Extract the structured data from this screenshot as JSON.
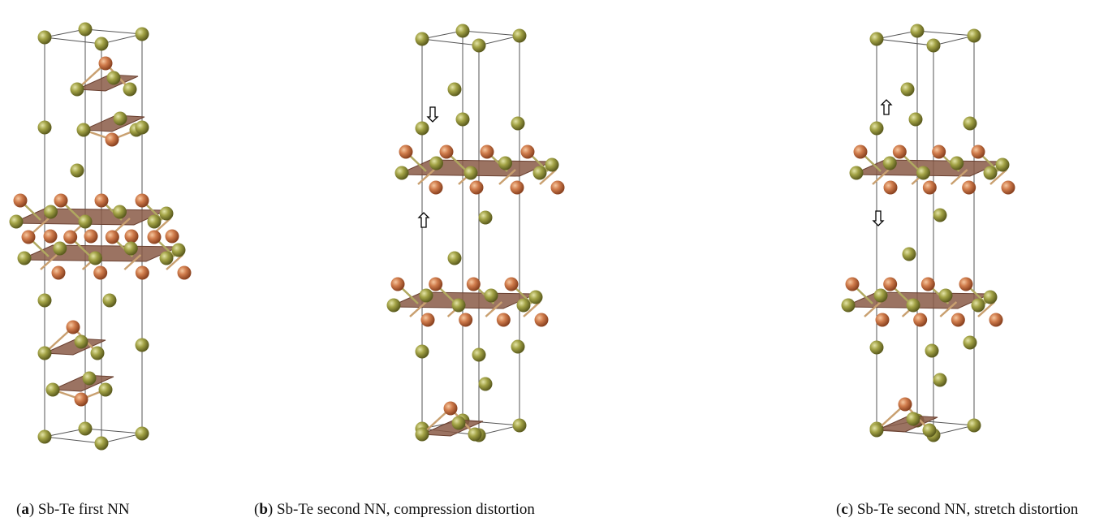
{
  "figure": {
    "panels": [
      {
        "open": "(",
        "label": "a",
        "text": ") Sb-Te first NN"
      },
      {
        "open": "(",
        "label": "b",
        "text": ") Sb-Te second NN, compression distortion"
      },
      {
        "open": "(",
        "label": "c",
        "text": ") Sb-Te second NN, stretch distortion"
      }
    ]
  }
}
